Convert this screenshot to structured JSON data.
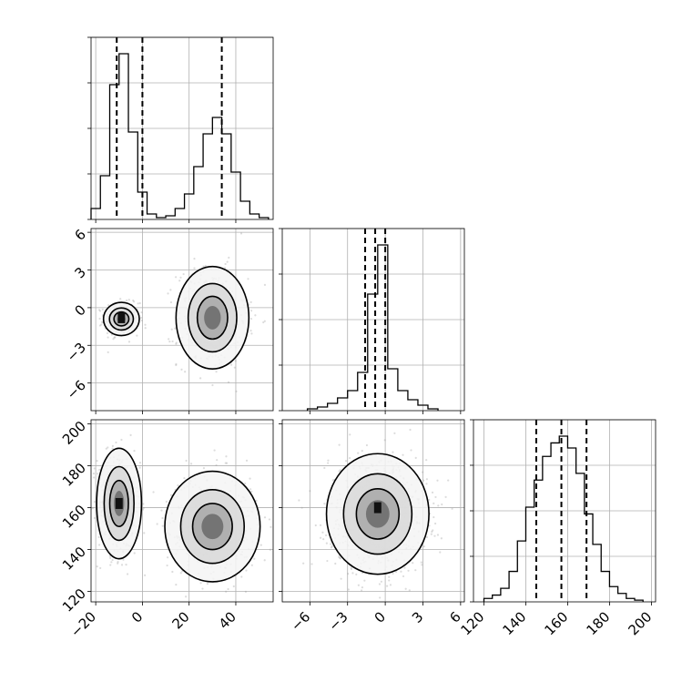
{
  "chart_data": {
    "type": "corner",
    "grid": true,
    "parameters": [
      {
        "ticks": [
          -20,
          0,
          20,
          40
        ],
        "tick_labels": [
          "−20",
          "0",
          "20",
          "40"
        ],
        "range": [
          -22,
          56
        ],
        "quantiles": [
          -11,
          0,
          34
        ],
        "hist_bins": [
          -22,
          -18,
          -14,
          -10,
          -6,
          -2,
          2,
          6,
          10,
          14,
          18,
          22,
          26,
          30,
          34,
          38,
          42,
          46,
          50,
          54
        ],
        "hist_counts": [
          0.06,
          0.24,
          0.74,
          0.91,
          0.48,
          0.15,
          0.03,
          0.01,
          0.02,
          0.06,
          0.14,
          0.29,
          0.47,
          0.56,
          0.47,
          0.26,
          0.1,
          0.03,
          0.01
        ]
      },
      {
        "ticks": [
          -6,
          -3,
          0,
          3,
          6
        ],
        "tick_labels": [
          "−6",
          "−3",
          "0",
          "3",
          "6"
        ],
        "range": [
          -8.2,
          6.3
        ],
        "quantiles": [
          -1.6,
          -0.8,
          0
        ],
        "hist_bins": [
          -6.2,
          -5.4,
          -4.6,
          -3.8,
          -3.0,
          -2.2,
          -1.4,
          -0.6,
          0.2,
          1.0,
          1.8,
          2.6,
          3.4,
          4.2
        ],
        "hist_counts": [
          0.01,
          0.02,
          0.04,
          0.07,
          0.11,
          0.21,
          0.64,
          0.91,
          0.23,
          0.11,
          0.06,
          0.03,
          0.01
        ]
      },
      {
        "ticks": [
          120,
          140,
          160,
          180,
          200
        ],
        "tick_labels": [
          "120",
          "140",
          "160",
          "180",
          "200"
        ],
        "range": [
          115,
          202
        ],
        "quantiles": [
          145,
          157,
          169
        ],
        "hist_bins": [
          120,
          124,
          128,
          132,
          136,
          140,
          144,
          148,
          152,
          156,
          160,
          164,
          168,
          172,
          176,
          180,
          184,
          188,
          192,
          196
        ],
        "hist_counts": [
          0.02,
          0.04,
          0.08,
          0.18,
          0.36,
          0.56,
          0.72,
          0.86,
          0.94,
          0.98,
          0.91,
          0.76,
          0.52,
          0.34,
          0.18,
          0.09,
          0.05,
          0.02,
          0.01
        ]
      }
    ],
    "panels_2d": [
      {
        "x_param": 0,
        "y_param": 1,
        "modes": [
          {
            "x": -9,
            "y": -0.9,
            "sx": 3.2,
            "sy": 0.55,
            "weight": 0.5
          },
          {
            "x": 30,
            "y": -0.8,
            "sx": 6.5,
            "sy": 1.7,
            "weight": 0.5
          }
        ],
        "density_peak": [
          -9,
          -0.8
        ],
        "density_extent": [
          -16,
          -3,
          -1.6,
          0
        ]
      },
      {
        "x_param": 0,
        "y_param": 2,
        "modes": [
          {
            "x": -10,
            "y": 162,
            "sx": 4.0,
            "sy": 11,
            "weight": 0.5
          },
          {
            "x": 30,
            "y": 151,
            "sx": 8.5,
            "sy": 11,
            "weight": 0.5
          }
        ],
        "density_peak": [
          -10,
          162
        ],
        "density_extent": [
          -14,
          -4,
          146,
          178
        ]
      },
      {
        "x_param": 1,
        "y_param": 2,
        "modes": [
          {
            "x": -0.6,
            "y": 157,
            "sx": 1.7,
            "sy": 12,
            "weight": 1.0
          }
        ],
        "density_peak": [
          -0.6,
          160
        ],
        "density_extent": [
          -1.6,
          0.2,
          144,
          176
        ]
      }
    ]
  }
}
